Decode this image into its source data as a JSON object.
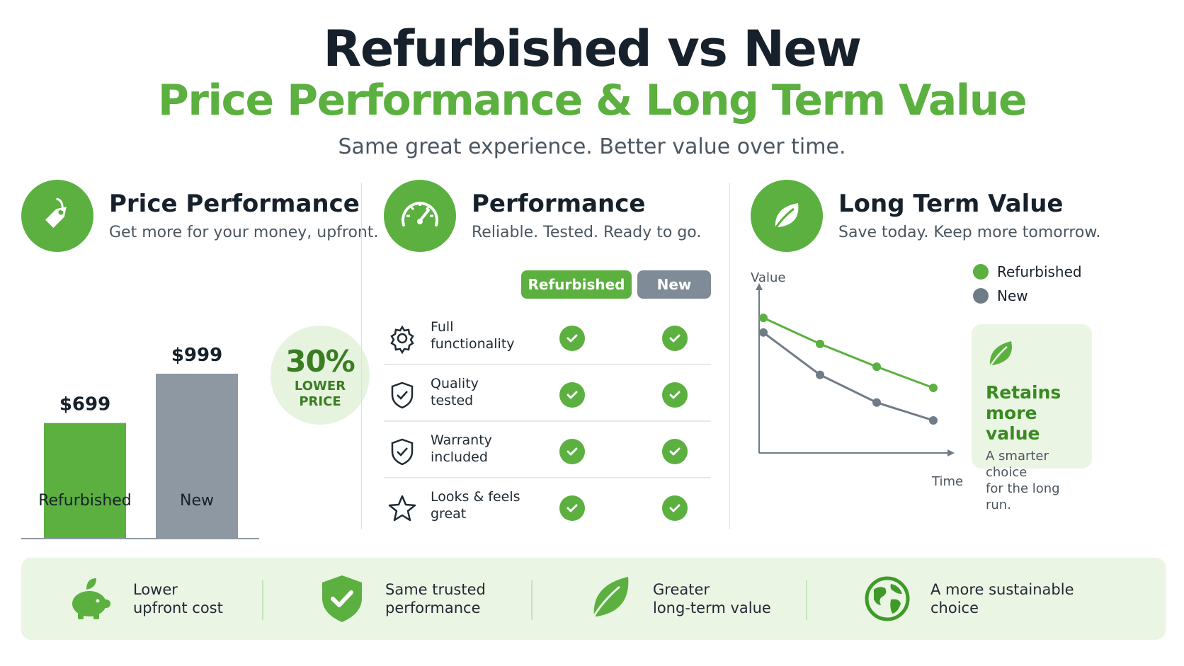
{
  "header": {
    "title": "Refurbished vs New",
    "subtitle": "Price Performance & Long Term Value",
    "tagline": "Same great experience. Better value over time."
  },
  "colors": {
    "green": "#5bb03f",
    "gray": "#7f8b96",
    "dark_green": "#3a7d22"
  },
  "price": {
    "title": "Price Performance",
    "subtitle": "Get more for your money, upfront.",
    "icon": "price-tag-icon",
    "badge_pct": "30%",
    "badge_line1": "LOWER",
    "badge_line2": "PRICE",
    "bars": [
      {
        "label": "Refurbished",
        "value_label": "$699",
        "value": 699,
        "color": "#5bb03f"
      },
      {
        "label": "New",
        "value_label": "$999",
        "value": 999,
        "color": "#8e98a2"
      }
    ]
  },
  "performance": {
    "title": "Performance",
    "subtitle": "Reliable. Tested. Ready to go.",
    "icon": "speedometer-icon",
    "col_refurbished": "Refurbished",
    "col_new": "New",
    "rows": [
      {
        "line1": "Full",
        "line2": "functionality",
        "icon": "gear-icon",
        "refurbished": true,
        "new": true
      },
      {
        "line1": "Quality",
        "line2": "tested",
        "icon": "shield-check-icon",
        "refurbished": true,
        "new": true
      },
      {
        "line1": "Warranty",
        "line2": "included",
        "icon": "shield-check-icon",
        "refurbished": true,
        "new": true
      },
      {
        "line1": "Looks & feels",
        "line2": "great",
        "icon": "star-icon",
        "refurbished": true,
        "new": true
      }
    ]
  },
  "value": {
    "title": "Long Term Value",
    "subtitle": "Save today. Keep more tomorrow.",
    "icon": "leaf-icon",
    "retain_title_1": "Retains",
    "retain_title_2": "more value",
    "retain_sub_1": "A smarter choice",
    "retain_sub_2": "for the long run."
  },
  "chart_data": {
    "type": "line",
    "xlabel": "Time",
    "ylabel": "Value",
    "x": [
      0,
      1,
      2,
      3
    ],
    "ylim": [
      0,
      10
    ],
    "legend_position": "top-right",
    "grid": false,
    "series": [
      {
        "name": "Refurbished",
        "color": "#5bb03f",
        "values": [
          8.3,
          6.7,
          5.3,
          4.0
        ]
      },
      {
        "name": "New",
        "color": "#6f7b87",
        "values": [
          7.4,
          4.8,
          3.1,
          2.0
        ]
      }
    ]
  },
  "footer": {
    "items": [
      {
        "line1": "Lower",
        "line2": "upfront cost",
        "icon": "piggy-bank-icon"
      },
      {
        "line1": "Same trusted",
        "line2": "performance",
        "icon": "shield-check-icon"
      },
      {
        "line1": "Greater",
        "line2": "long-term value",
        "icon": "leaf-icon"
      },
      {
        "line1": "A more sustainable",
        "line2": "choice",
        "icon": "globe-icon"
      }
    ]
  }
}
